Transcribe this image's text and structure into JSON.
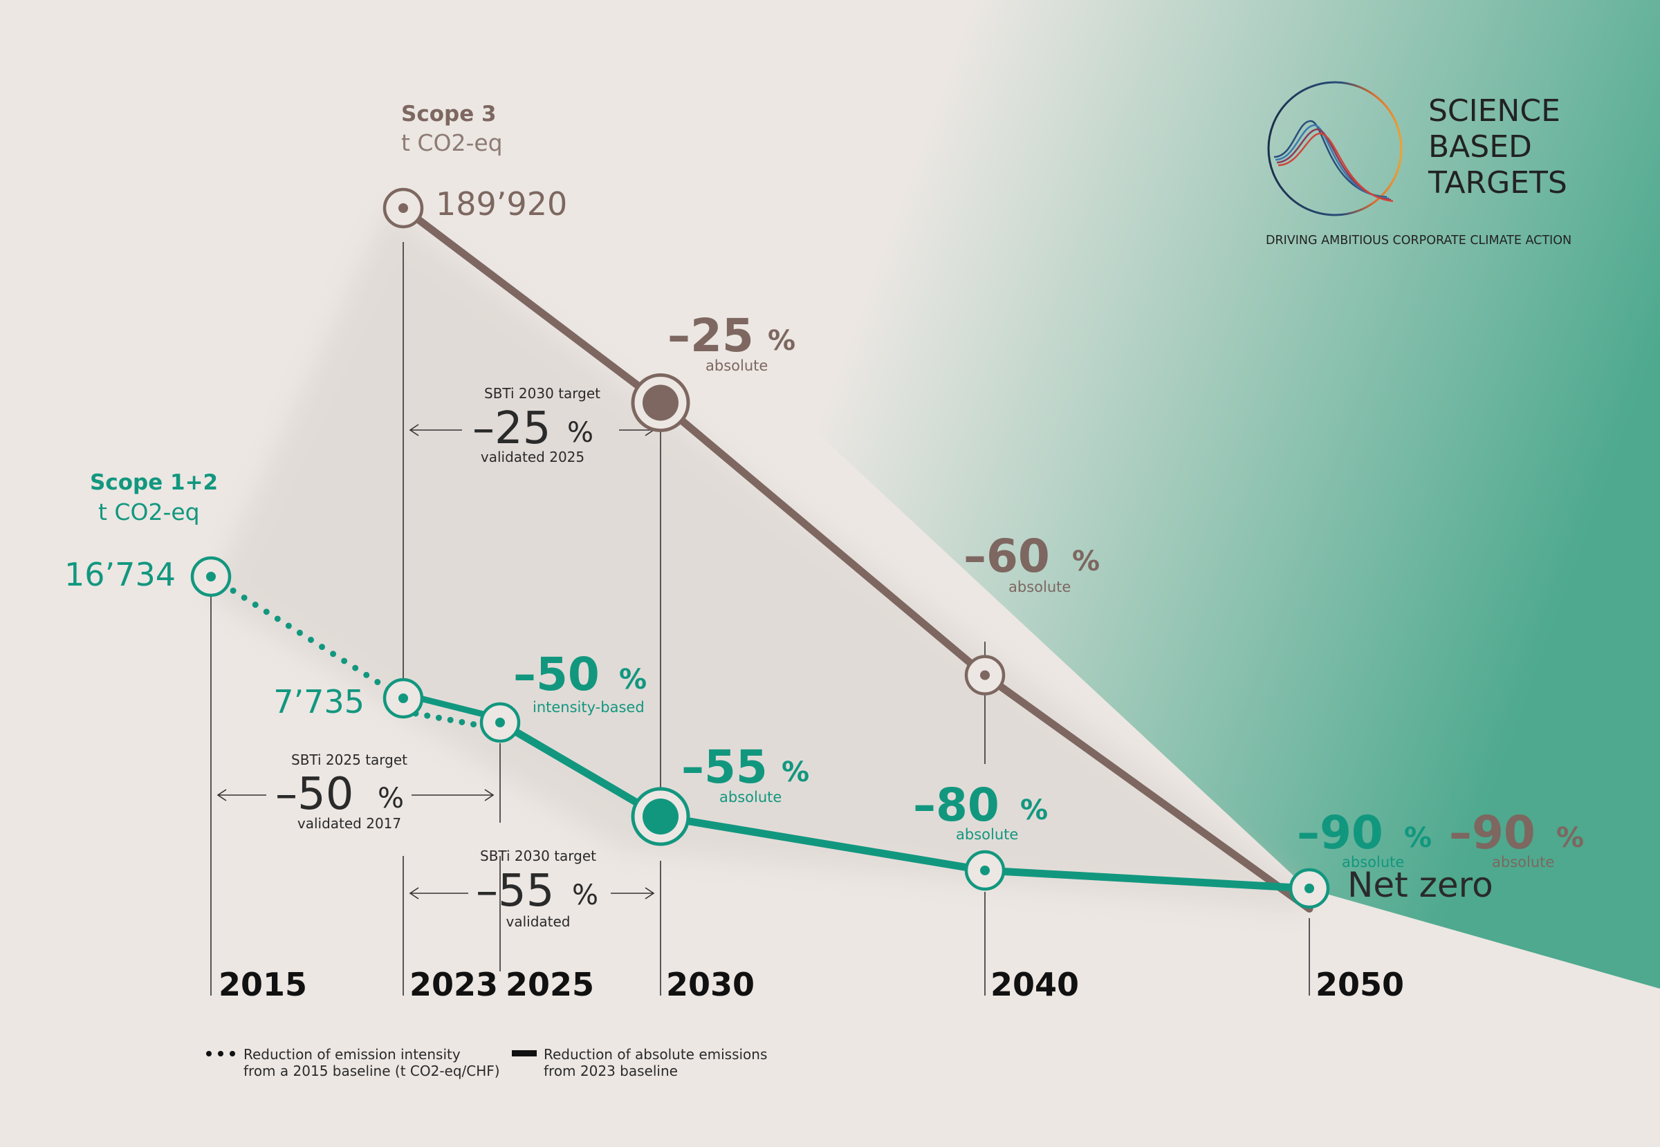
{
  "colors": {
    "background": "#ece7e3",
    "scope3": "#7d6760",
    "scope12": "#12977f",
    "gradient_teal": "#4ea98e",
    "text_dark": "#2a2a2a",
    "year_text": "#111111"
  },
  "chart_data": {
    "type": "line",
    "x_axis": {
      "years": [
        2015,
        2023,
        2025,
        2030,
        2040,
        2050
      ],
      "labels": [
        "2015",
        "2023",
        "2025",
        "2030",
        "2040",
        "2050"
      ]
    },
    "series": [
      {
        "id": "scope3",
        "title": "Scope 3",
        "unit": "t CO2-eq",
        "baseline_label": "189’920",
        "points": [
          {
            "year": 2023,
            "reduction_pct": 0,
            "value_label": "189’920",
            "marker": "ring"
          },
          {
            "year": 2030,
            "reduction_pct": 25,
            "label": "–25",
            "sub": "absolute",
            "marker": "big"
          },
          {
            "year": 2040,
            "reduction_pct": 60,
            "label": "–60",
            "sub": "absolute",
            "marker": "ring"
          },
          {
            "year": 2050,
            "reduction_pct": 90,
            "label": "–90",
            "sub": "absolute",
            "marker": "none"
          }
        ]
      },
      {
        "id": "scope12",
        "title": "Scope 1+2",
        "unit": "t CO2-eq",
        "points": [
          {
            "year": 2015,
            "value_label": "16’734",
            "marker": "ring"
          },
          {
            "year": 2023,
            "value_label": "7’735",
            "marker": "ring"
          },
          {
            "year": 2025,
            "label": "–50",
            "sub": "intensity-based",
            "marker": "ring"
          },
          {
            "year": 2030,
            "label": "–55",
            "sub": "absolute",
            "marker": "big"
          },
          {
            "year": 2040,
            "label": "–80",
            "sub": "absolute",
            "marker": "ring"
          },
          {
            "year": 2050,
            "label": "–90",
            "sub": "absolute",
            "marker": "ring",
            "extra": "Net zero"
          }
        ],
        "segments": [
          {
            "from": 2015,
            "to": 2023,
            "style": "dotted"
          },
          {
            "from": 2023,
            "to": 2025,
            "style": "solid+dotted"
          },
          {
            "from": 2025,
            "to": 2030,
            "style": "solid"
          },
          {
            "from": 2030,
            "to": 2040,
            "style": "solid"
          },
          {
            "from": 2040,
            "to": 2050,
            "style": "solid"
          }
        ]
      }
    ],
    "percent_sign": "%",
    "targets": [
      {
        "id": "scope3_2030",
        "from": 2023,
        "to": 2030,
        "title": "SBTi 2030 target",
        "value": "–25",
        "note": "validated 2025"
      },
      {
        "id": "scope12_2025",
        "from": 2015,
        "to": 2025,
        "title": "SBTi 2025 target",
        "value": "–50",
        "note": "validated 2017"
      },
      {
        "id": "scope12_2030",
        "from": 2023,
        "to": 2030,
        "title": "SBTi 2030 target",
        "value": "–55",
        "note": "validated"
      }
    ],
    "legend": [
      {
        "style": "dotted",
        "line1": "Reduction of emission intensity",
        "line2": "from a 2015 baseline (t CO2-eq/CHF)"
      },
      {
        "style": "solid",
        "line1": "Reduction of absolute emissions",
        "line2": "from 2023 baseline"
      }
    ]
  },
  "logo": {
    "line1": "SCIENCE",
    "line2": "BASED",
    "line3": "TARGETS",
    "tagline": "DRIVING AMBITIOUS CORPORATE CLIMATE ACTION"
  }
}
